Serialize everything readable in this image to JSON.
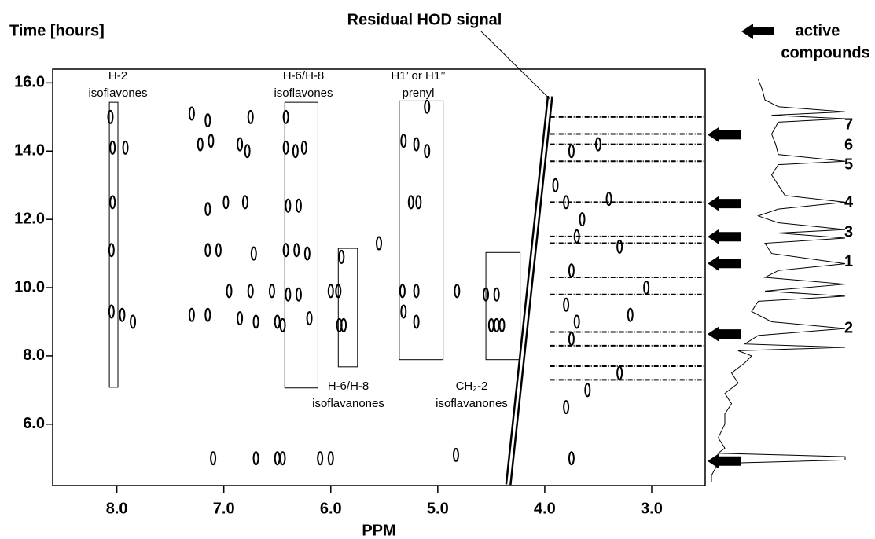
{
  "chart_data": {
    "type": "contour",
    "y_label": "Time [hours]",
    "x_label": "PPM",
    "annotation": "Residual HOD signal",
    "legend": [
      "active",
      "compounds"
    ],
    "color": "#000000",
    "xlim": [
      8.6,
      2.5
    ],
    "ylim": [
      4.2,
      16.4
    ],
    "xticks": [
      {
        "value": 8,
        "label": "8.0"
      },
      {
        "value": 7,
        "label": "7.0"
      },
      {
        "value": 6,
        "label": "6.0"
      },
      {
        "value": 5,
        "label": "5.0"
      },
      {
        "value": 4,
        "label": "4.0"
      },
      {
        "value": 3,
        "label": "3.0"
      }
    ],
    "yticks": [
      {
        "value": 6,
        "label": "6.0"
      },
      {
        "value": 8,
        "label": "8.0"
      },
      {
        "value": 10,
        "label": "10.0"
      },
      {
        "value": 12,
        "label": "12.0"
      },
      {
        "value": 14,
        "label": "14.0"
      },
      {
        "value": 16,
        "label": "16.0"
      }
    ],
    "regions": [
      {
        "label": [
          "H-2",
          "isoflavones"
        ],
        "x": [
          8.07,
          7.99
        ],
        "y": [
          7.08,
          15.43
        ]
      },
      {
        "label": [
          "H-6/H-8",
          "isoflavones"
        ],
        "x": [
          6.43,
          6.12
        ],
        "y": [
          7.06,
          15.43
        ]
      },
      {
        "label": [
          "H-6/H-8",
          "isoflavanones"
        ],
        "x": [
          5.93,
          5.75
        ],
        "y": [
          7.68,
          11.15
        ]
      },
      {
        "label": [
          "H1’ or H1’’",
          "prenyl"
        ],
        "x": [
          5.36,
          4.95
        ],
        "y": [
          7.89,
          15.47
        ]
      },
      {
        "label": [
          "CH₂-2",
          "isoflavanones"
        ],
        "x": [
          4.55,
          4.23
        ],
        "y": [
          7.89,
          11.03
        ]
      }
    ],
    "peaks": {
      "x": [
        8.04,
        7.92,
        7.22,
        7.12,
        6.85,
        6.78,
        6.42,
        6.33,
        6.25,
        5.32,
        5.2,
        5.1,
        8.06,
        7.3,
        7.15,
        6.75,
        6.42,
        5.1,
        8.04,
        7.15,
        6.98,
        6.8,
        6.4,
        6.3,
        5.25,
        5.18,
        8.05,
        7.15,
        7.05,
        6.72,
        6.42,
        6.32,
        6.22,
        5.9,
        5.55,
        6.95,
        6.75,
        6.55,
        6.4,
        6.3,
        6.0,
        5.93,
        5.33,
        5.2,
        4.82,
        4.55,
        4.45,
        8.05,
        7.95,
        7.85,
        7.3,
        7.15,
        6.85,
        6.7,
        6.5,
        6.45,
        6.2,
        5.92,
        5.88,
        5.32,
        5.2,
        4.5,
        4.45,
        4.4,
        7.1,
        6.7,
        6.5,
        6.45,
        6.1,
        6.0,
        4.83,
        3.75,
        3.8,
        3.7,
        3.75,
        3.8,
        3.7,
        3.75,
        3.8,
        3.75,
        3.5,
        3.4,
        3.3,
        3.05,
        3.2,
        3.3,
        3.6,
        3.9,
        3.65
      ],
      "y": [
        14.1,
        14.1,
        14.2,
        14.3,
        14.2,
        14.0,
        14.1,
        14.0,
        14.1,
        14.3,
        14.2,
        14.0,
        15.0,
        15.1,
        14.9,
        15.0,
        15.0,
        15.3,
        12.5,
        12.3,
        12.5,
        12.5,
        12.4,
        12.4,
        12.5,
        12.5,
        11.1,
        11.1,
        11.1,
        11.0,
        11.1,
        11.1,
        11.0,
        10.9,
        11.3,
        9.9,
        9.9,
        9.9,
        9.8,
        9.8,
        9.9,
        9.9,
        9.9,
        9.9,
        9.9,
        9.8,
        9.8,
        9.3,
        9.2,
        9.0,
        9.2,
        9.2,
        9.1,
        9.0,
        9.0,
        8.9,
        9.1,
        8.9,
        8.9,
        9.3,
        9.0,
        8.9,
        8.9,
        8.9,
        5.0,
        5.0,
        5.0,
        5.0,
        5.0,
        5.0,
        5.1,
        14.0,
        12.5,
        11.5,
        10.5,
        9.5,
        9.0,
        8.5,
        6.5,
        5.0,
        14.2,
        12.6,
        11.2,
        10.0,
        9.2,
        7.5,
        7.0,
        13.0,
        12.0
      ]
    },
    "streaks": [
      15.0,
      14.5,
      14.2,
      13.7,
      12.5,
      11.5,
      11.3,
      10.3,
      9.8,
      8.7,
      8.3,
      7.7,
      7.3
    ],
    "hod_line": {
      "x": [
        4.34,
        3.95
      ],
      "y": [
        4.23,
        15.61
      ]
    },
    "trace": {
      "x": [
        16.1,
        15.8,
        15.5,
        15.3,
        15.15,
        15.05,
        14.95,
        14.85,
        14.5,
        14.2,
        13.9,
        13.7,
        13.6,
        13.3,
        13.0,
        12.7,
        12.5,
        12.3,
        12.1,
        11.9,
        11.7,
        11.6,
        11.45,
        11.3,
        11.0,
        10.7,
        10.5,
        10.3,
        10.1,
        9.9,
        9.75,
        9.6,
        9.3,
        9.0,
        8.8,
        8.6,
        8.35,
        8.25,
        8.15,
        8.0,
        7.8,
        7.5,
        7.2,
        6.9,
        6.6,
        6.3,
        6.0,
        5.6,
        5.3,
        5.15,
        5.05,
        4.95,
        4.85,
        4.5,
        4.3
      ],
      "values": [
        0.35,
        0.38,
        0.4,
        0.5,
        1.0,
        0.45,
        1.0,
        0.5,
        0.45,
        0.48,
        0.5,
        1.0,
        0.5,
        0.45,
        0.5,
        0.55,
        1.0,
        0.5,
        0.35,
        0.5,
        1.0,
        0.5,
        1.0,
        0.4,
        0.45,
        1.0,
        0.5,
        0.4,
        1.0,
        0.4,
        1.0,
        0.35,
        0.3,
        0.45,
        1.0,
        0.35,
        0.25,
        1.0,
        0.2,
        0.3,
        0.25,
        0.15,
        0.2,
        0.1,
        0.15,
        0.1,
        0.1,
        0.05,
        0.1,
        0.05,
        1.0,
        1.0,
        0.05,
        0.0,
        0.0
      ]
    },
    "arrows": [
      14.48,
      12.46,
      11.49,
      10.71,
      8.64,
      4.92
    ],
    "compounds": {
      "labels": [
        "7",
        "6",
        "5",
        "4",
        "3",
        "1",
        "2"
      ],
      "y": [
        14.76,
        14.16,
        13.59,
        12.48,
        11.61,
        10.74,
        8.8
      ]
    }
  }
}
